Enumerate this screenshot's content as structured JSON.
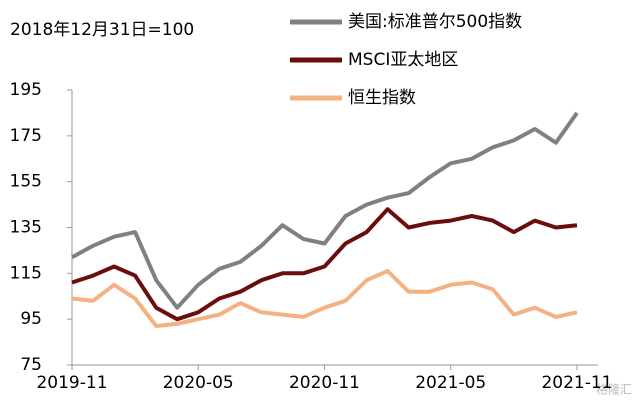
{
  "chart_data": {
    "type": "line",
    "annotation": "2018年12月31日=100",
    "watermark": "格隆汇",
    "x": [
      "2019-11",
      "2019-12",
      "2020-01",
      "2020-02",
      "2020-03",
      "2020-04",
      "2020-05",
      "2020-06",
      "2020-07",
      "2020-08",
      "2020-09",
      "2020-10",
      "2020-11",
      "2020-12",
      "2021-01",
      "2021-02",
      "2021-03",
      "2021-04",
      "2021-05",
      "2021-06",
      "2021-07",
      "2021-08",
      "2021-09",
      "2021-10",
      "2021-11"
    ],
    "xlim": [
      "2019-11",
      "2021-12"
    ],
    "xticks": [
      "2019-11",
      "2020-05",
      "2020-11",
      "2021-05",
      "2021-11"
    ],
    "ylim": [
      75,
      195
    ],
    "yticks": [
      75,
      95,
      115,
      135,
      155,
      175,
      195
    ],
    "grid": false,
    "series": [
      {
        "name": "美国:标准普尔500指数",
        "color": "#808080",
        "values": [
          122,
          127,
          131,
          133,
          112,
          100,
          110,
          117,
          120,
          127,
          136,
          130,
          128,
          140,
          145,
          148,
          150,
          157,
          163,
          165,
          170,
          173,
          178,
          172,
          185
        ]
      },
      {
        "name": "MSCI亚太地区",
        "color": "#6b0d0d",
        "values": [
          111,
          114,
          118,
          114,
          100,
          95,
          98,
          104,
          107,
          112,
          115,
          115,
          118,
          128,
          133,
          143,
          135,
          137,
          138,
          140,
          138,
          133,
          138,
          135,
          136
        ]
      },
      {
        "name": "恒生指数",
        "color": "#f4b183",
        "values": [
          104,
          103,
          110,
          104,
          92,
          93,
          95,
          97,
          102,
          98,
          97,
          96,
          100,
          103,
          112,
          116,
          107,
          107,
          110,
          111,
          108,
          97,
          100,
          96,
          98
        ]
      }
    ]
  }
}
